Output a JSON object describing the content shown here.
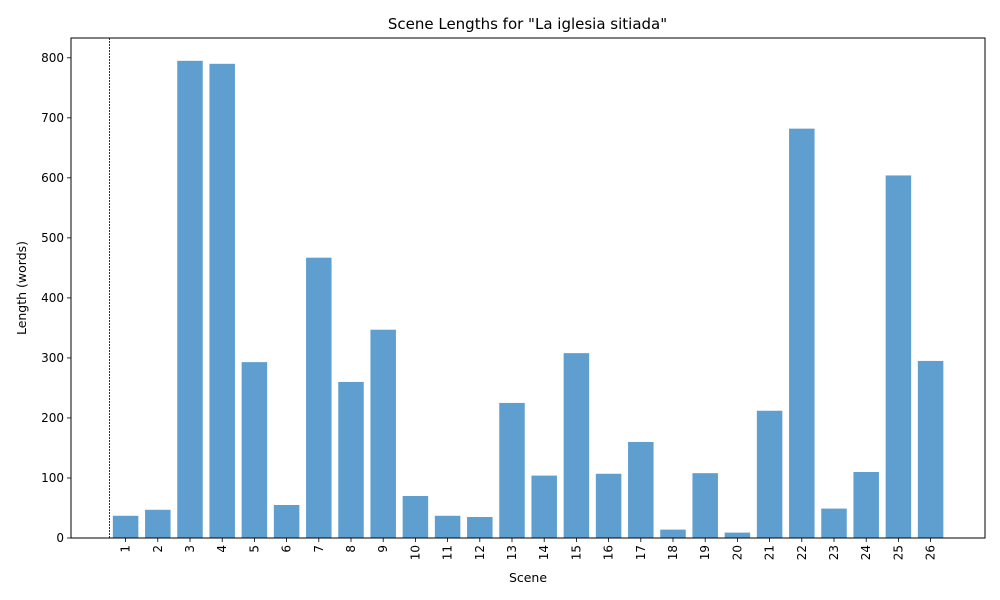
{
  "chart_data": {
    "type": "bar",
    "title": "Scene Lengths for \"La iglesia sitiada\"",
    "xlabel": "Scene",
    "ylabel": "Length (words)",
    "categories": [
      "1",
      "2",
      "3",
      "4",
      "5",
      "6",
      "7",
      "8",
      "9",
      "10",
      "11",
      "12",
      "13",
      "14",
      "15",
      "16",
      "17",
      "18",
      "19",
      "20",
      "21",
      "22",
      "23",
      "24",
      "25",
      "26"
    ],
    "values": [
      37,
      47,
      795,
      790,
      293,
      55,
      467,
      260,
      347,
      70,
      37,
      35,
      225,
      104,
      308,
      107,
      160,
      14,
      108,
      9,
      212,
      682,
      49,
      110,
      604,
      295
    ],
    "ylim": [
      0,
      833
    ],
    "yticks": [
      0,
      100,
      200,
      300,
      400,
      500,
      600,
      700,
      800
    ],
    "bar_color": "#5f9fcf",
    "reference_line_color": "#000000",
    "grid": false
  }
}
